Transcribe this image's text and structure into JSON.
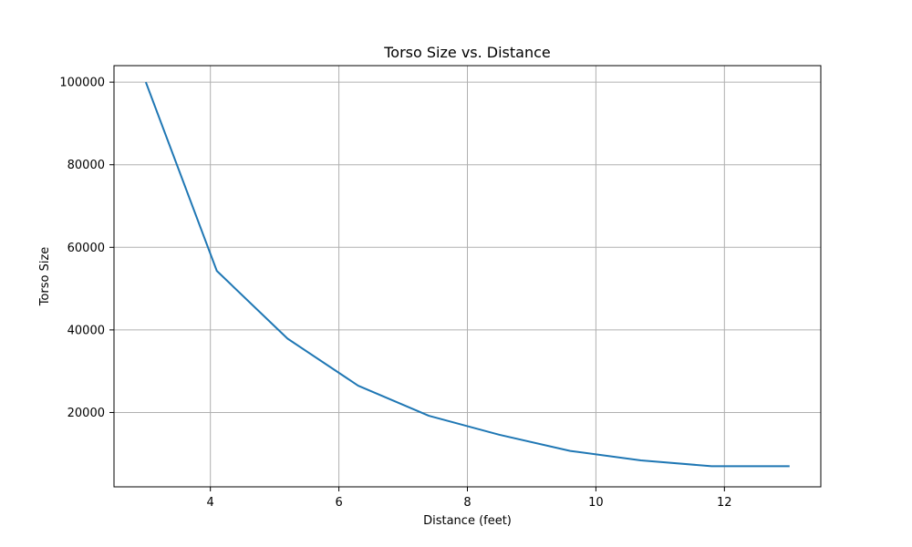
{
  "chart_data": {
    "type": "line",
    "title": "Torso Size vs. Distance",
    "xlabel": "Distance (feet)",
    "ylabel": "Torso Size",
    "xlim": [
      2.5,
      13.5
    ],
    "ylim": [
      2000,
      104000
    ],
    "xticks": [
      4,
      6,
      8,
      10,
      12
    ],
    "yticks": [
      20000,
      40000,
      60000,
      80000,
      100000
    ],
    "grid": true,
    "series": [
      {
        "color": "#1f77b4",
        "x": [
          3.0,
          4.1,
          5.2,
          6.3,
          7.4,
          8.5,
          9.6,
          10.7,
          11.8,
          13.0
        ],
        "y": [
          99800,
          54300,
          37900,
          26500,
          19200,
          14600,
          10700,
          8400,
          7000,
          7000
        ]
      }
    ]
  }
}
